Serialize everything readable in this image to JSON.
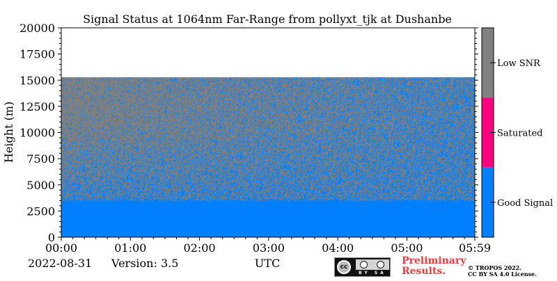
{
  "chart_data": {
    "type": "heatmap",
    "title": "Signal Status at 1064nm Far-Range from pollyxt_tjk at Dushanbe",
    "xlabel": "UTC",
    "ylabel": "Height (m)",
    "x_ticks": [
      "00:00",
      "01:00",
      "02:00",
      "03:00",
      "04:00",
      "05:00",
      "05:59"
    ],
    "y_ticks": [
      "0",
      "2500",
      "5000",
      "7500",
      "10000",
      "12500",
      "15000",
      "17500",
      "20000"
    ],
    "x_range_hours": [
      0,
      5.983
    ],
    "ylim": [
      0,
      20000
    ],
    "categories": [
      {
        "name": "Low SNR",
        "color": "#808080"
      },
      {
        "name": "Saturated",
        "color": "#ff0080"
      },
      {
        "name": "Good Signal",
        "color": "#0080ff"
      }
    ],
    "regions": [
      {
        "status": "Good Signal",
        "from_m": 0,
        "to_m": 3500
      },
      {
        "status": "mixed Good Signal / Low SNR",
        "from_m": 3500,
        "to_m": 15300,
        "good_fraction_bottom": 0.5,
        "good_fraction_top_start": 0.08,
        "good_fraction_top_end": 0.45
      },
      {
        "status": "no data",
        "from_m": 15300,
        "to_m": 20000
      }
    ]
  },
  "footer": {
    "date": "2022-08-31",
    "version": "Version: 3.5",
    "preliminary_line1": "Preliminary",
    "preliminary_line2": "Results.",
    "copyright_line1": "© TROPOS 2022.",
    "copyright_line2": "CC BY SA 4.0 License.",
    "license_badge_text": "BY SA",
    "license_cc_text": "cc"
  }
}
